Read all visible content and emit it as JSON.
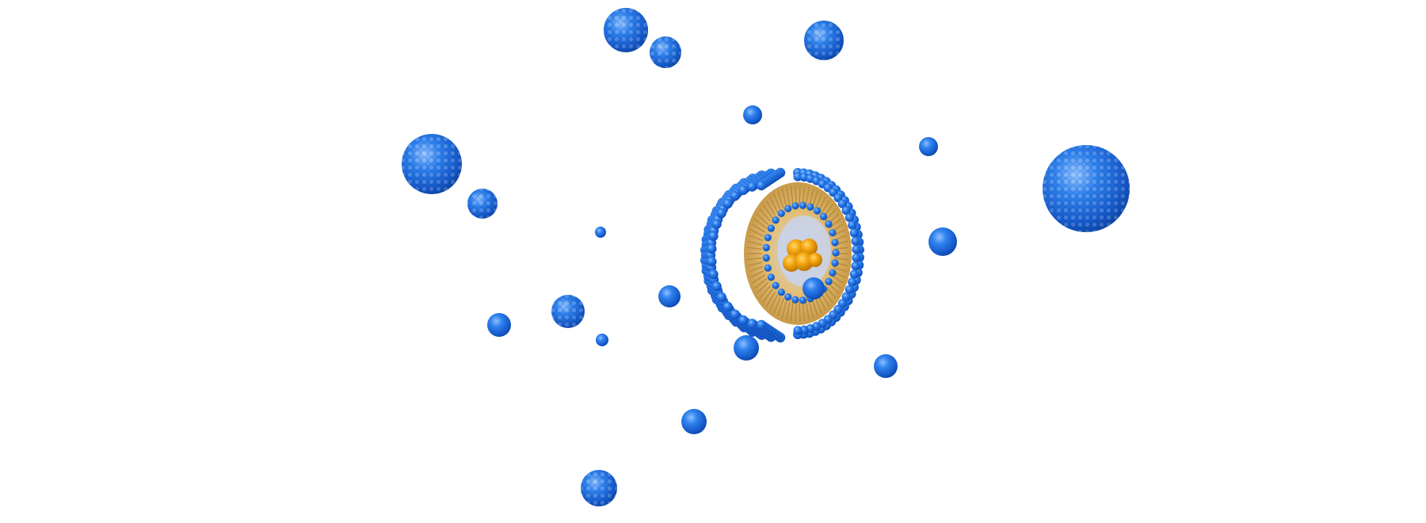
{
  "scene": {
    "subject": "liposome-nanoparticle",
    "background_color": "#ffffff",
    "colors": {
      "particle_blue": "#1f6fe0",
      "particle_blue_dark": "#0a4fb8",
      "particle_highlight": "#7fb4ff",
      "lipid_tail": "#d9b46a",
      "lipid_tail_dark": "#b88a3c",
      "core_cargo": "#f2a20c",
      "core_cargo_dark": "#c97a00"
    },
    "icons": {
      "particle": "sphere-icon",
      "liposome": "liposome-cross-section-icon",
      "cargo": "drug-cargo-icon"
    }
  }
}
